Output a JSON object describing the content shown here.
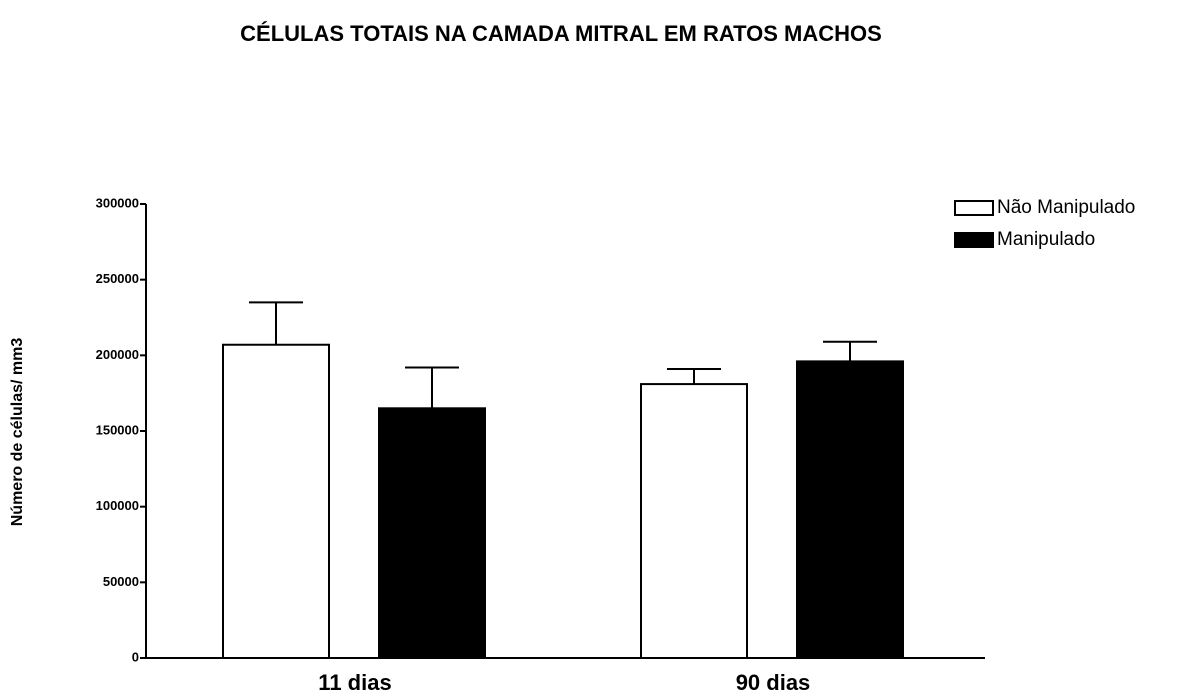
{
  "chart_data": {
    "type": "bar",
    "title": "CÉLULAS TOTAIS NA CAMADA MITRAL EM RATOS MACHOS",
    "y_label": "Número de células/ mm3",
    "categories": [
      "11 dias",
      "90 dias"
    ],
    "series": [
      {
        "name": "Não Manipulado",
        "color": "#ffffff",
        "values": [
          207000,
          181000
        ],
        "errors": [
          28000,
          10000
        ]
      },
      {
        "name": "Manipulado",
        "color": "#000000",
        "values": [
          165000,
          196000
        ],
        "errors": [
          27000,
          13000
        ]
      }
    ],
    "ylim": [
      0,
      300000
    ],
    "yticks": [
      0,
      50000,
      100000,
      150000,
      200000,
      250000,
      300000
    ],
    "legend": "top-right"
  }
}
